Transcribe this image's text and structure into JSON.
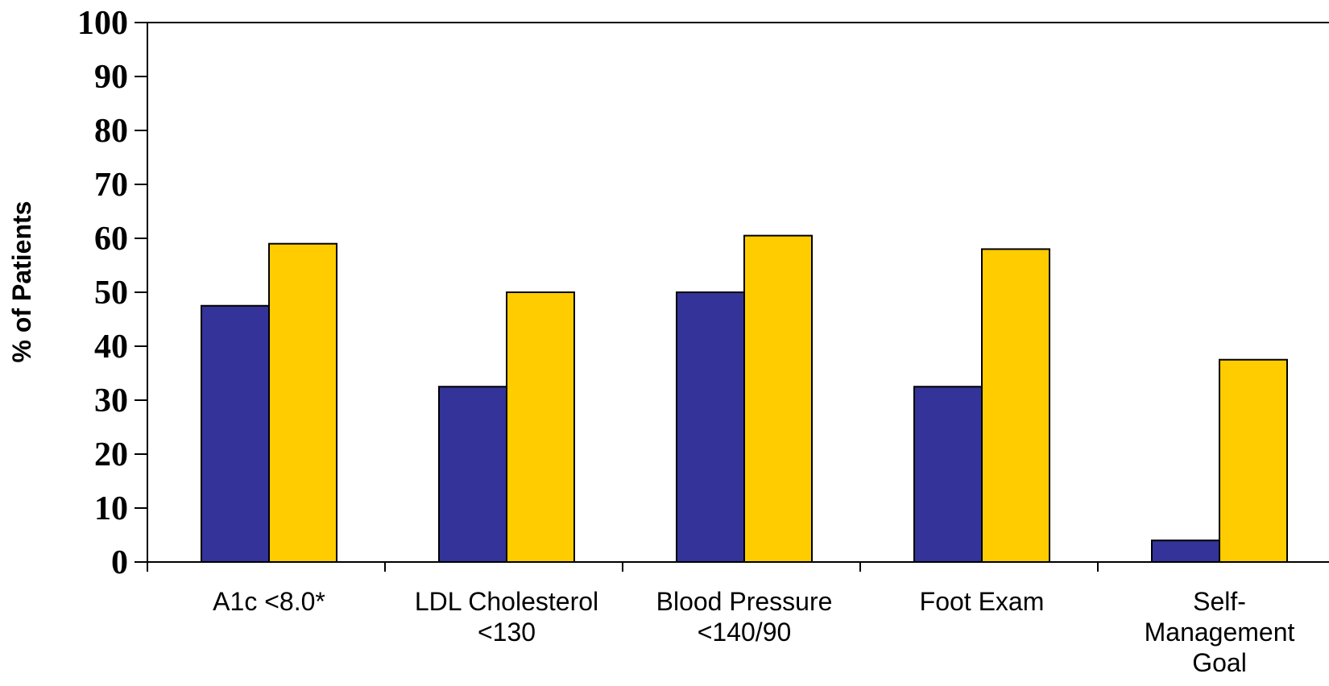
{
  "chart_data": {
    "type": "bar",
    "categories": [
      [
        "A1c <8.0*"
      ],
      [
        "LDL Cholesterol",
        "<130"
      ],
      [
        "Blood Pressure",
        "<140/90"
      ],
      [
        "Foot Exam"
      ],
      [
        "Self-",
        "Management",
        "Goal"
      ]
    ],
    "series": [
      {
        "color": "#333399",
        "values": [
          47.5,
          32.5,
          50,
          32.5,
          4
        ]
      },
      {
        "color": "#FFCC00",
        "values": [
          59,
          50,
          60.5,
          58,
          37.5
        ]
      }
    ],
    "ylabel": "% of Patients",
    "ylim": [
      0,
      100
    ],
    "yticks": [
      0,
      10,
      20,
      30,
      40,
      50,
      60,
      70,
      80,
      90,
      100
    ],
    "grid": false
  }
}
